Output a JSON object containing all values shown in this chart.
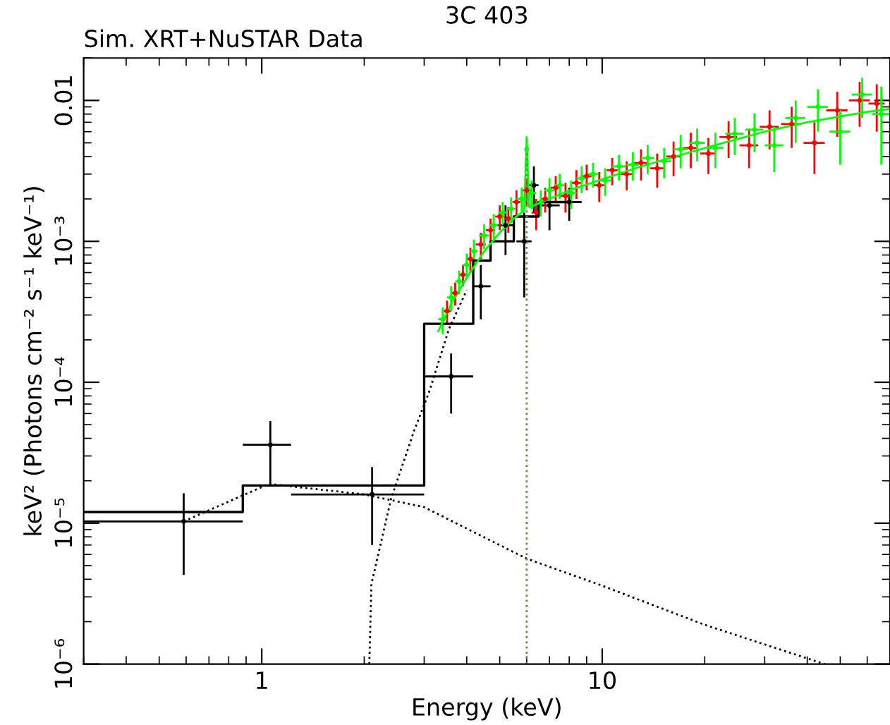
{
  "chart_data": {
    "type": "scatter",
    "title": "3C 403",
    "subtitle": "Sim. XRT+NuSTAR Data",
    "xlabel": "Energy (keV)",
    "ylabel": "keV² (Photons cm⁻² s⁻¹ keV⁻¹)",
    "log": "xy",
    "xlim": [
      0.3,
      70
    ],
    "ylim": [
      1e-06,
      0.02
    ],
    "xticks": [
      1,
      10
    ],
    "yticks": [
      {
        "value": 1e-06,
        "label": "10⁻⁶"
      },
      {
        "value": 1e-05,
        "label": "10⁻⁵"
      },
      {
        "value": 0.0001,
        "label": "10⁻⁴"
      },
      {
        "value": 0.001,
        "label": "10⁻³"
      },
      {
        "value": 0.01,
        "label": "0.01"
      }
    ],
    "grid": false,
    "legend": false,
    "series": [
      {
        "color": "#000000",
        "x": [
          0.59,
          1.06,
          2.11,
          3.6,
          4.4,
          5.2,
          5.9,
          6.3,
          7.0,
          8.0
        ],
        "values": [
          1.03e-05,
          3.6e-05,
          1.6e-05,
          0.00011,
          0.00048,
          0.0013,
          0.001,
          0.0025,
          0.0018,
          0.0019
        ],
        "errors": [
          6e-06,
          1.7e-05,
          9e-06,
          5e-05,
          0.0002,
          0.0005,
          0.0006,
          0.0009,
          0.0006,
          0.0005
        ],
        "xerrors": [
          [
            0.3,
            0.88
          ],
          [
            0.88,
            1.22
          ],
          [
            1.22,
            3.0
          ],
          [
            3.0,
            4.18
          ],
          [
            4.18,
            4.7
          ],
          [
            4.9,
            5.5
          ],
          [
            5.6,
            6.2
          ],
          [
            6.1,
            6.5
          ],
          [
            6.5,
            7.5
          ],
          [
            7.3,
            8.7
          ]
        ]
      },
      {
        "color": "#ff0000",
        "x": [
          3.5,
          3.7,
          3.9,
          4.1,
          4.4,
          4.7,
          5.0,
          5.3,
          5.6,
          6.0,
          6.4,
          6.8,
          7.3,
          7.8,
          8.4,
          9.0,
          9.8,
          10.7,
          11.8,
          13.0,
          14.5,
          16.2,
          18.2,
          20.5,
          23.5,
          27,
          31,
          36,
          42,
          49,
          57,
          64
        ],
        "values": [
          0.00032,
          0.00043,
          0.00058,
          0.00075,
          0.00095,
          0.0012,
          0.0015,
          0.00145,
          0.0019,
          0.0023,
          0.0016,
          0.002,
          0.0024,
          0.0021,
          0.0026,
          0.0029,
          0.0025,
          0.0032,
          0.003,
          0.0036,
          0.0033,
          0.004,
          0.0046,
          0.0042,
          0.0055,
          0.0048,
          0.0065,
          0.0068,
          0.005,
          0.0085,
          0.01,
          0.0095
        ],
        "errors": [
          6e-05,
          8e-05,
          0.0001,
          0.00015,
          0.0002,
          0.00025,
          0.0003,
          0.0003,
          0.0004,
          0.0005,
          0.0004,
          0.0004,
          0.0005,
          0.0005,
          0.0006,
          0.0006,
          0.0006,
          0.0007,
          0.0007,
          0.0009,
          0.0009,
          0.0011,
          0.0013,
          0.0012,
          0.0016,
          0.0015,
          0.002,
          0.0022,
          0.002,
          0.003,
          0.0035,
          0.0035
        ],
        "xerrors": [
          0.1,
          0.1,
          0.1,
          0.1,
          0.15,
          0.15,
          0.15,
          0.15,
          0.15,
          0.2,
          0.2,
          0.2,
          0.25,
          0.25,
          0.3,
          0.3,
          0.4,
          0.4,
          0.5,
          0.6,
          0.7,
          0.8,
          0.9,
          1.1,
          1.4,
          1.7,
          2.0,
          2.5,
          3.0,
          3.5,
          4.0,
          3.5
        ]
      },
      {
        "color": "#00ff00",
        "x": [
          3.4,
          3.6,
          3.8,
          4.0,
          4.2,
          4.5,
          4.8,
          5.1,
          5.4,
          5.8,
          6.0,
          6.2,
          6.6,
          7.0,
          7.5,
          8.1,
          8.7,
          9.4,
          10.2,
          11.2,
          12.3,
          13.6,
          15.2,
          17,
          19,
          21.5,
          24.5,
          28,
          32,
          37,
          43,
          50,
          58,
          66
        ],
        "values": [
          0.00028,
          0.0004,
          0.00052,
          0.00068,
          0.00085,
          0.0011,
          0.0013,
          0.0016,
          0.0017,
          0.002,
          0.0045,
          0.0022,
          0.0019,
          0.0023,
          0.0025,
          0.0022,
          0.0028,
          0.003,
          0.0027,
          0.0034,
          0.0035,
          0.0039,
          0.0037,
          0.0045,
          0.005,
          0.0046,
          0.0058,
          0.0062,
          0.0048,
          0.0075,
          0.009,
          0.006,
          0.011,
          0.008
        ],
        "errors": [
          6e-05,
          8e-05,
          0.0001,
          0.00014,
          0.00018,
          0.00022,
          0.00026,
          0.0003,
          0.00035,
          0.0004,
          0.0009,
          0.0005,
          0.0004,
          0.0005,
          0.0005,
          0.0005,
          0.0006,
          0.0006,
          0.0006,
          0.0007,
          0.0008,
          0.0009,
          0.0009,
          0.0012,
          0.0013,
          0.0013,
          0.0017,
          0.0019,
          0.0017,
          0.0025,
          0.003,
          0.0025,
          0.0035,
          0.0045
        ],
        "xerrors": [
          0.1,
          0.1,
          0.1,
          0.1,
          0.1,
          0.15,
          0.15,
          0.15,
          0.15,
          0.2,
          0.05,
          0.2,
          0.2,
          0.25,
          0.25,
          0.3,
          0.3,
          0.35,
          0.4,
          0.5,
          0.5,
          0.6,
          0.7,
          0.8,
          1.0,
          1.2,
          1.5,
          1.7,
          2.0,
          2.5,
          3.0,
          3.5,
          4.0,
          4.0
        ]
      },
      {
        "type": "step",
        "color": "#000000",
        "line_style": "solid",
        "x": [
          0.3,
          0.88,
          3.0,
          4.18,
          4.7,
          5.5,
          6.5,
          8.0
        ],
        "values": [
          1.2e-05,
          1.85e-05,
          0.00026,
          0.00073,
          0.001,
          0.0015,
          0.0019,
          0.0019
        ]
      },
      {
        "type": "line",
        "color": "#00ff00",
        "line_style": "solid",
        "x": [
          3.3,
          3.6,
          4,
          4.5,
          5,
          5.5,
          5.9,
          6.0,
          6.1,
          6.5,
          7,
          8,
          10,
          13,
          17,
          22,
          30,
          40,
          50,
          60,
          70
        ],
        "values": [
          0.00023,
          0.00036,
          0.00055,
          0.00085,
          0.00115,
          0.00145,
          0.00165,
          0.0055,
          0.00175,
          0.00185,
          0.002,
          0.0023,
          0.00275,
          0.0034,
          0.0041,
          0.0049,
          0.006,
          0.007,
          0.0077,
          0.0083,
          0.0087
        ]
      },
      {
        "type": "line",
        "color": "#000000",
        "line_style": "dotted",
        "x": [
          0.59,
          1.05,
          2.0,
          3.0,
          6.0,
          10,
          20,
          45
        ],
        "values": [
          1.03e-05,
          1.9e-05,
          1.6e-05,
          1.3e-05,
          5.6e-06,
          3.6e-06,
          1.9e-06,
          1e-06
        ]
      },
      {
        "type": "line",
        "color": "#000000",
        "line_style": "dotted",
        "x": [
          2.07,
          2.1,
          2.4,
          2.8,
          3.1,
          3.55,
          4.0
        ],
        "values": [
          1e-06,
          3.7e-06,
          1.5e-05,
          4.5e-05,
          8.5e-05,
          0.00024,
          0.00045
        ]
      },
      {
        "type": "line",
        "color": "#4c9a2a",
        "line_style": "dotted",
        "x": [
          6.0,
          6.0
        ],
        "values": [
          1e-06,
          0.0045
        ]
      }
    ]
  }
}
